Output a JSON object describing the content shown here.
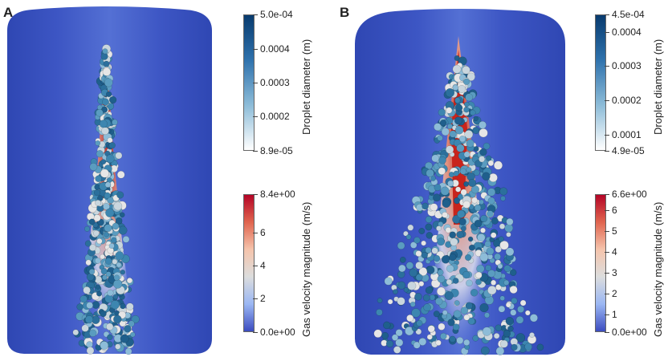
{
  "panels": [
    {
      "letter": "A",
      "diameter_bar": {
        "title": "Droplet diameter (m)",
        "ticks": [
          "5.0e-04",
          "0.0004",
          "0.0003",
          "0.0002",
          "8.9e-05"
        ]
      },
      "velocity_bar": {
        "title": "Gas velocity magnitude (m/s)",
        "ticks": [
          "8.4e+00",
          "6",
          "4",
          "2",
          "0.0e+00"
        ]
      }
    },
    {
      "letter": "B",
      "diameter_bar": {
        "title": "Droplet diameter (m)",
        "ticks": [
          "4.5e-04",
          "0.0004",
          "0.0003",
          "0.0002",
          "0.0001",
          "4.9e-05"
        ]
      },
      "velocity_bar": {
        "title": "Gas velocity magnitude (m/s)",
        "ticks": [
          "6.6e+00",
          "6",
          "5",
          "4",
          "3",
          "2",
          "1",
          "0.0e+00"
        ]
      }
    }
  ],
  "colors": {
    "vessel_blue": "#3d56c4",
    "jet_red": "#c8241c",
    "droplet_dark": "#1f5f8c",
    "droplet_light": "#e6e6e6"
  }
}
